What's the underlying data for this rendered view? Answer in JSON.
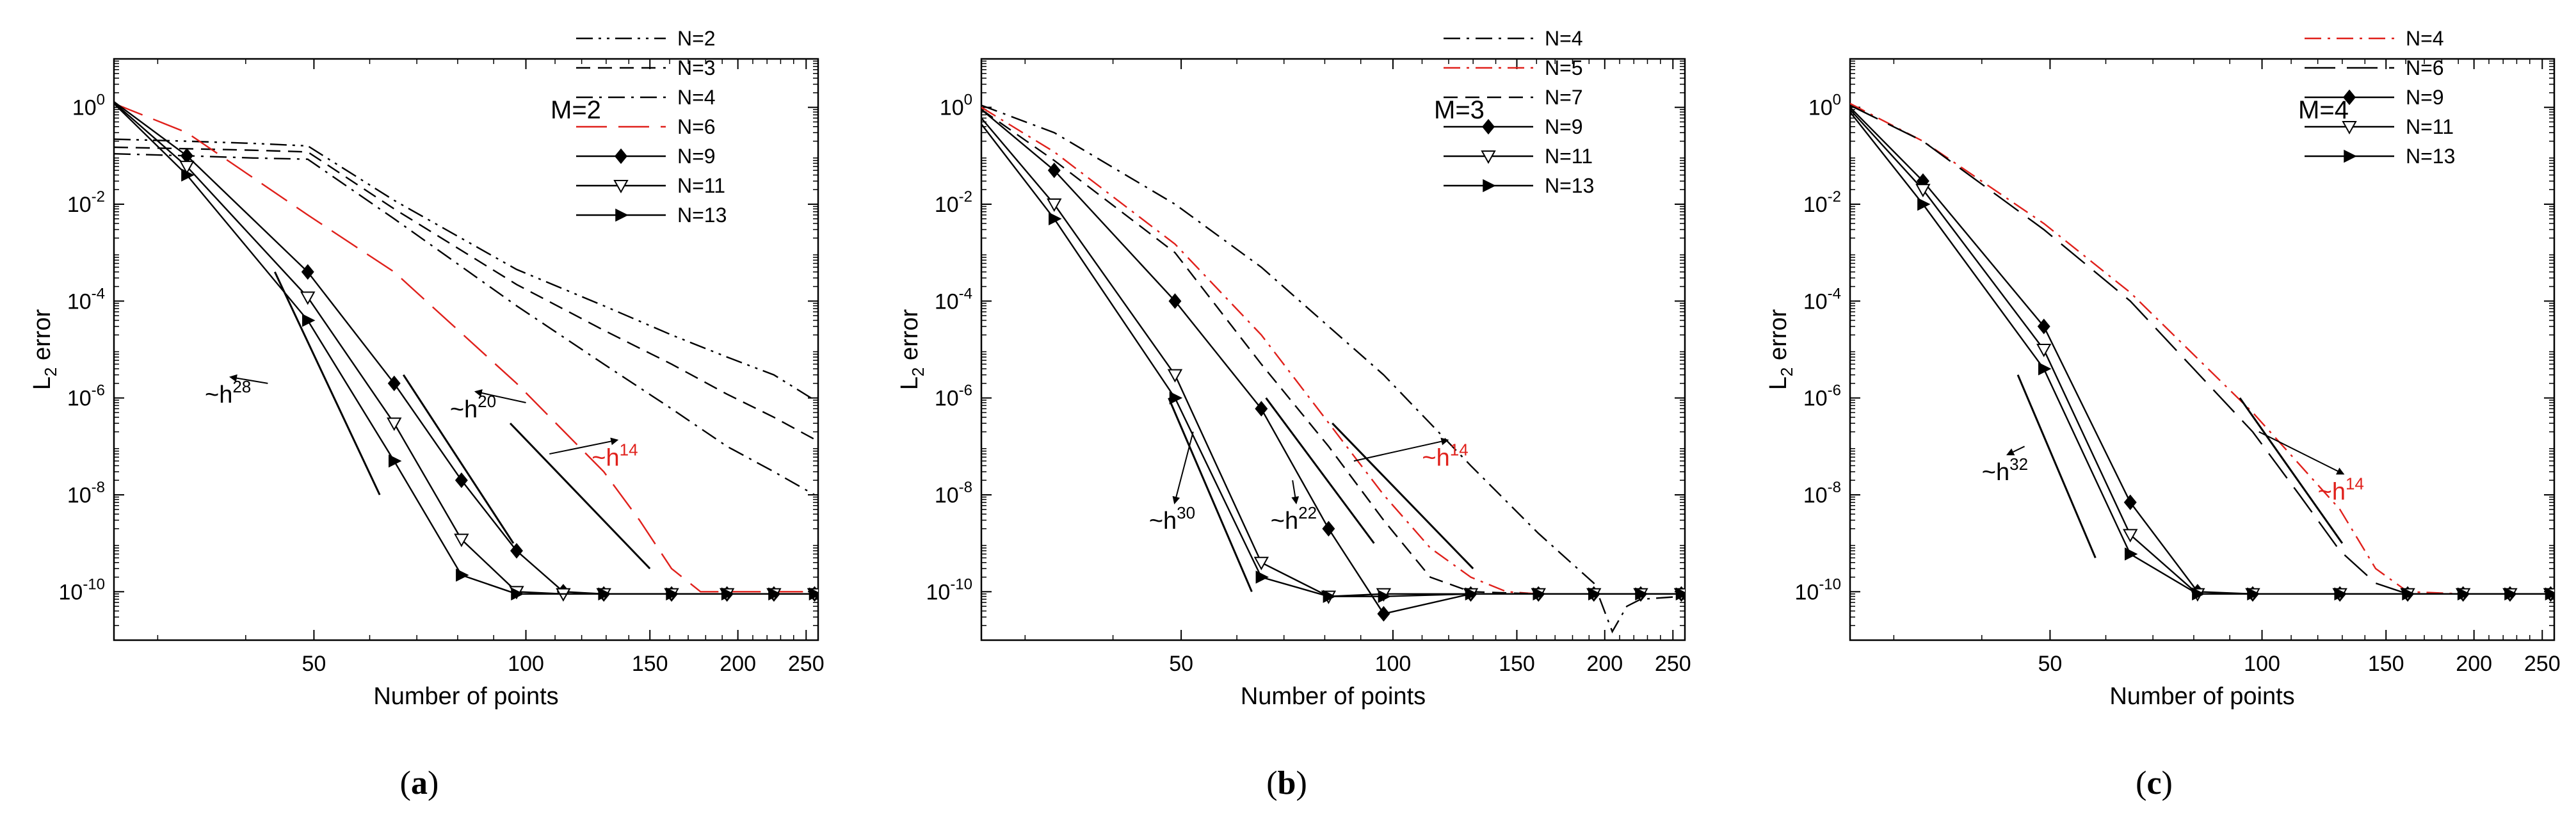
{
  "colors": {
    "black": "#000000",
    "red": "#e0201b"
  },
  "chart_data": [
    {
      "type": "line",
      "panel": "(a)",
      "title": "M=2",
      "xlabel": "Number of points",
      "ylabel": "L",
      "ylabel_sub": "2",
      "ylabel_rest": " error",
      "xscale": "log",
      "yscale": "log",
      "xlim": [
        26,
        260
      ],
      "ylim": [
        1e-11,
        10
      ],
      "xticks": [
        {
          "v": 50,
          "label": "50"
        },
        {
          "v": 100,
          "label": "100"
        },
        {
          "v": 150,
          "label": "150"
        },
        {
          "v": 200,
          "label": "200"
        },
        {
          "v": 250,
          "label": "250"
        }
      ],
      "yticks": [
        {
          "e": 0
        },
        {
          "e": -2
        },
        {
          "e": -4
        },
        {
          "e": -6
        },
        {
          "e": -8
        },
        {
          "e": -10
        }
      ],
      "legend_position": "top-right",
      "series": [
        {
          "name": "N=2",
          "color": "#000000",
          "dash": "dashdotdot",
          "marker": "none",
          "x": [
            26,
            33,
            41,
            49,
            65,
            97,
            129,
            161,
            193,
            225,
            257
          ],
          "y": [
            0.22,
            0.2,
            0.18,
            0.16,
            0.012,
            0.00045,
            8e-05,
            2e-05,
            7e-06,
            3e-06,
            9e-07
          ]
        },
        {
          "name": "N=3",
          "color": "#000000",
          "dash": "dash",
          "marker": "none",
          "x": [
            26,
            33,
            41,
            49,
            65,
            97,
            129,
            161,
            193,
            225,
            257
          ],
          "y": [
            0.15,
            0.14,
            0.13,
            0.12,
            0.008,
            0.00022,
            2.5e-05,
            5e-06,
            1.2e-06,
            4e-07,
            1.4e-07
          ]
        },
        {
          "name": "N=4",
          "color": "#000000",
          "dash": "dashdot",
          "marker": "none",
          "x": [
            26,
            33,
            41,
            49,
            65,
            97,
            129,
            161,
            193,
            225,
            257
          ],
          "y": [
            0.11,
            0.1,
            0.09,
            0.085,
            0.005,
            8e-05,
            5e-06,
            6e-07,
            1e-07,
            3e-08,
            1e-08
          ]
        },
        {
          "name": "N=6",
          "color": "#e0201b",
          "dash": "longdash",
          "marker": "none",
          "x": [
            26,
            33,
            49,
            65,
            97,
            129,
            145,
            161,
            177,
            193,
            225,
            257
          ],
          "y": [
            1.2,
            0.3,
            0.006,
            0.0004,
            2e-06,
            3e-08,
            3e-09,
            3e-10,
            1e-10,
            1e-10,
            1e-10,
            1e-10
          ]
        },
        {
          "name": "N=9",
          "color": "#000000",
          "dash": "solid",
          "marker": "diamond",
          "x": [
            26,
            33,
            49,
            65,
            81,
            97,
            113,
            129,
            161,
            193,
            225,
            257
          ],
          "y": [
            1.3,
            0.1,
            0.0004,
            2e-06,
            2e-08,
            7e-10,
            1e-10,
            9e-11,
            9e-11,
            9e-11,
            9e-11,
            9e-11
          ]
        },
        {
          "name": "N=11",
          "color": "#000000",
          "dash": "solid",
          "marker": "triangle-down",
          "x": [
            26,
            33,
            49,
            65,
            81,
            97,
            113,
            129,
            161,
            193,
            225,
            257
          ],
          "y": [
            1.25,
            0.06,
            0.00012,
            3e-07,
            1.2e-09,
            1e-10,
            9e-11,
            9e-11,
            9e-11,
            9e-11,
            9e-11,
            9e-11
          ]
        },
        {
          "name": "N=13",
          "color": "#000000",
          "dash": "solid",
          "marker": "triangle-right",
          "x": [
            26,
            33,
            49,
            65,
            81,
            97,
            129,
            161,
            193,
            225,
            257
          ],
          "y": [
            1.2,
            0.04,
            4e-05,
            5e-08,
            2.2e-10,
            9e-11,
            9e-11,
            9e-11,
            9e-11,
            9e-11,
            9e-11
          ]
        }
      ],
      "slope_lines": [
        {
          "x": [
            44,
            62
          ],
          "y": [
            0.0004,
            1e-08
          ],
          "color": "#000000"
        },
        {
          "x": [
            67,
            96
          ],
          "y": [
            3e-06,
            1e-09
          ],
          "color": "#000000"
        },
        {
          "x": [
            95,
            150
          ],
          "y": [
            3e-07,
            3e-10
          ],
          "color": "#000000"
        }
      ],
      "annotations": [
        {
          "base": "~h",
          "exp": "28",
          "color": "#000000",
          "x": 35,
          "y": 8e-07,
          "arrow_to": [
            43,
            2e-06
          ]
        },
        {
          "base": "~h",
          "exp": "20",
          "color": "#000000",
          "x": 78,
          "y": 4e-07,
          "arrow_to": [
            100,
            8e-07
          ]
        },
        {
          "base": "~h",
          "exp": "14",
          "color": "#e0201b",
          "x": 124,
          "y": 4e-08,
          "arrow_to": [
            108,
            7e-08
          ]
        }
      ]
    },
    {
      "type": "line",
      "panel": "(b)",
      "title": "M=3",
      "xlabel": "Number of points",
      "ylabel": "L",
      "ylabel_sub": "2",
      "ylabel_rest": " error",
      "xscale": "log",
      "yscale": "log",
      "xlim": [
        26,
        260
      ],
      "ylim": [
        1e-11,
        10
      ],
      "xticks": [
        {
          "v": 50,
          "label": "50"
        },
        {
          "v": 100,
          "label": "100"
        },
        {
          "v": 150,
          "label": "150"
        },
        {
          "v": 200,
          "label": "200"
        },
        {
          "v": 250,
          "label": "250"
        }
      ],
      "yticks": [
        {
          "e": 0
        },
        {
          "e": -2
        },
        {
          "e": -4
        },
        {
          "e": -6
        },
        {
          "e": -8
        },
        {
          "e": -10
        }
      ],
      "legend_position": "top-right",
      "series": [
        {
          "name": "N=4",
          "color": "#000000",
          "dash": "dashdot",
          "marker": "none",
          "x": [
            26,
            33,
            49,
            65,
            97,
            129,
            161,
            193,
            205,
            215,
            225,
            257
          ],
          "y": [
            1.1,
            0.3,
            0.01,
            0.0005,
            3e-06,
            4e-08,
            1.6e-09,
            1.5e-10,
            1.5e-11,
            5e-11,
            7e-11,
            8e-11
          ]
        },
        {
          "name": "N=5",
          "color": "#e0201b",
          "dash": "dashdot",
          "marker": "none",
          "x": [
            26,
            33,
            49,
            65,
            97,
            113,
            129,
            145,
            161,
            193,
            225,
            257
          ],
          "y": [
            1.0,
            0.12,
            0.0015,
            2e-05,
            1e-08,
            8e-10,
            2e-10,
            1e-10,
            9e-11,
            9e-11,
            9e-11,
            9e-11
          ]
        },
        {
          "name": "N=7",
          "color": "#000000",
          "dash": "dash",
          "marker": "none",
          "x": [
            26,
            33,
            49,
            65,
            81,
            97,
            113,
            129,
            161,
            193,
            225,
            257
          ],
          "y": [
            0.9,
            0.08,
            0.001,
            5e-06,
            1e-07,
            3e-09,
            2e-10,
            1e-10,
            9e-11,
            9e-11,
            9e-11,
            9e-11
          ]
        },
        {
          "name": "N=9",
          "color": "#000000",
          "dash": "solid",
          "marker": "diamond",
          "x": [
            26,
            33,
            49,
            65,
            81,
            97,
            129,
            161,
            193,
            225,
            257
          ],
          "y": [
            0.9,
            0.05,
            0.0001,
            6e-07,
            2e-09,
            3.5e-11,
            9e-11,
            9e-11,
            9e-11,
            9e-11,
            9e-11
          ]
        },
        {
          "name": "N=11",
          "color": "#000000",
          "dash": "solid",
          "marker": "triangle-down",
          "x": [
            26,
            33,
            49,
            65,
            81,
            97,
            129,
            161,
            193,
            225,
            257
          ],
          "y": [
            0.6,
            0.01,
            3e-06,
            4e-10,
            8e-11,
            9e-11,
            9e-11,
            9e-11,
            9e-11,
            9e-11,
            9e-11
          ]
        },
        {
          "name": "N=13",
          "color": "#000000",
          "dash": "solid",
          "marker": "triangle-right",
          "x": [
            26,
            33,
            49,
            65,
            81,
            97,
            129,
            161,
            193,
            225,
            257
          ],
          "y": [
            0.45,
            0.005,
            1e-06,
            2e-10,
            8e-11,
            8e-11,
            9e-11,
            9e-11,
            9e-11,
            9e-11,
            9e-11
          ]
        }
      ],
      "slope_lines": [
        {
          "x": [
            48,
            63
          ],
          "y": [
            1e-06,
            1e-10
          ],
          "color": "#000000"
        },
        {
          "x": [
            66,
            94
          ],
          "y": [
            1e-06,
            1e-09
          ],
          "color": "#000000"
        },
        {
          "x": [
            82,
            130
          ],
          "y": [
            3e-07,
            3e-10
          ],
          "color": "#000000"
        }
      ],
      "annotations": [
        {
          "base": "~h",
          "exp": "30",
          "color": "#000000",
          "x": 45,
          "y": 2e-09,
          "arrow_to": [
            52,
            2e-07
          ]
        },
        {
          "base": "~h",
          "exp": "22",
          "color": "#000000",
          "x": 67,
          "y": 2e-09,
          "arrow_to": [
            72,
            2e-08
          ]
        },
        {
          "base": "~h",
          "exp": "14",
          "color": "#e0201b",
          "x": 110,
          "y": 4e-08,
          "arrow_to": [
            88,
            5e-08
          ]
        }
      ]
    },
    {
      "type": "line",
      "panel": "(c)",
      "title": "M=4",
      "xlabel": "Number of points",
      "ylabel": "L",
      "ylabel_sub": "2",
      "ylabel_rest": " error",
      "xscale": "log",
      "yscale": "log",
      "xlim": [
        26,
        260
      ],
      "ylim": [
        1e-11,
        10
      ],
      "xticks": [
        {
          "v": 50,
          "label": "50"
        },
        {
          "v": 100,
          "label": "100"
        },
        {
          "v": 150,
          "label": "150"
        },
        {
          "v": 200,
          "label": "200"
        },
        {
          "v": 250,
          "label": "250"
        }
      ],
      "yticks": [
        {
          "e": 0
        },
        {
          "e": -2
        },
        {
          "e": -4
        },
        {
          "e": -6
        },
        {
          "e": -8
        },
        {
          "e": -10
        }
      ],
      "legend_position": "top-right",
      "series": [
        {
          "name": "N=4",
          "color": "#e0201b",
          "dash": "dashdot",
          "marker": "none",
          "x": [
            26,
            33,
            49,
            65,
            97,
            129,
            145,
            161,
            193,
            225,
            257
          ],
          "y": [
            1.2,
            0.2,
            0.004,
            0.00015,
            5e-07,
            5e-09,
            3e-10,
            1e-10,
            9e-11,
            9e-11,
            9e-11
          ]
        },
        {
          "name": "N=6",
          "color": "#000000",
          "dash": "longdash",
          "marker": "none",
          "x": [
            26,
            33,
            49,
            65,
            97,
            113,
            129,
            145,
            161,
            193,
            225,
            257
          ],
          "y": [
            1.1,
            0.2,
            0.003,
            0.0001,
            2e-07,
            1e-08,
            7e-10,
            1.5e-10,
            9e-11,
            9e-11,
            9e-11,
            9e-11
          ]
        },
        {
          "name": "N=9",
          "color": "#000000",
          "dash": "solid",
          "marker": "diamond",
          "x": [
            26,
            33,
            49,
            65,
            81,
            97,
            129,
            161,
            193,
            225,
            257
          ],
          "y": [
            1.0,
            0.03,
            3e-05,
            7e-09,
            1e-10,
            9e-11,
            9e-11,
            9e-11,
            9e-11,
            9e-11,
            9e-11
          ]
        },
        {
          "name": "N=11",
          "color": "#000000",
          "dash": "solid",
          "marker": "triangle-down",
          "x": [
            26,
            33,
            49,
            65,
            81,
            97,
            129,
            161,
            193,
            225,
            257
          ],
          "y": [
            0.9,
            0.02,
            1e-05,
            1.5e-09,
            9e-11,
            9e-11,
            9e-11,
            9e-11,
            9e-11,
            9e-11,
            9e-11
          ]
        },
        {
          "name": "N=13",
          "color": "#000000",
          "dash": "solid",
          "marker": "triangle-right",
          "x": [
            26,
            33,
            49,
            65,
            81,
            97,
            129,
            161,
            193,
            225,
            257
          ],
          "y": [
            0.8,
            0.01,
            4e-06,
            6e-10,
            9e-11,
            9e-11,
            9e-11,
            9e-11,
            9e-11,
            9e-11,
            9e-11
          ]
        }
      ],
      "slope_lines": [
        {
          "x": [
            45,
            58
          ],
          "y": [
            3e-06,
            5e-10
          ],
          "color": "#000000"
        },
        {
          "x": [
            93,
            130
          ],
          "y": [
            1e-06,
            1e-09
          ],
          "color": "#000000"
        }
      ],
      "annotations": [
        {
          "base": "~h",
          "exp": "32",
          "color": "#000000",
          "x": 40,
          "y": 2e-08,
          "arrow_to": [
            46,
            1e-07
          ]
        },
        {
          "base": "~h",
          "exp": "14",
          "color": "#e0201b",
          "x": 120,
          "y": 8e-09,
          "arrow_to": [
            99,
            2e-07
          ]
        }
      ]
    }
  ]
}
